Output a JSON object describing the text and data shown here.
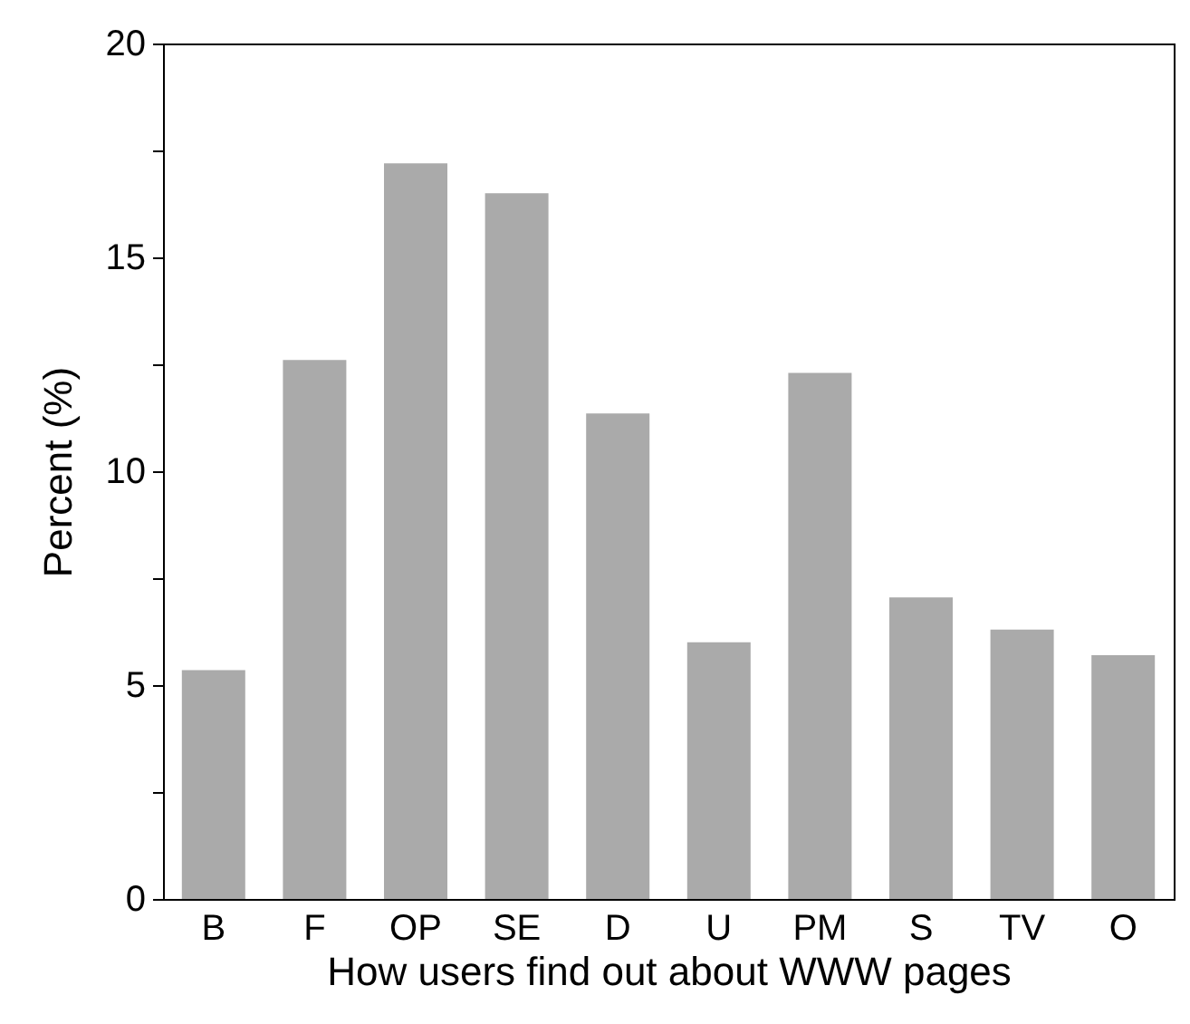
{
  "chart_data": {
    "type": "bar",
    "xlabel": "How users find out about WWW pages",
    "ylabel": "Percent (%)",
    "categories": [
      "B",
      "F",
      "OP",
      "SE",
      "D",
      "U",
      "PM",
      "S",
      "TV",
      "O"
    ],
    "values": [
      5.35,
      12.6,
      17.2,
      16.5,
      11.35,
      6.0,
      12.3,
      7.05,
      6.3,
      5.7
    ],
    "color": "#aaaaaa",
    "ylim": [
      0,
      20
    ],
    "yticks": [
      0,
      {
        "value": 2.5,
        "label": null
      },
      5,
      {
        "value": 7.5,
        "label": null
      },
      10,
      {
        "value": 12.5,
        "label": null
      },
      15,
      {
        "value": 17.5,
        "label": null
      },
      20
    ],
    "grid": false
  }
}
